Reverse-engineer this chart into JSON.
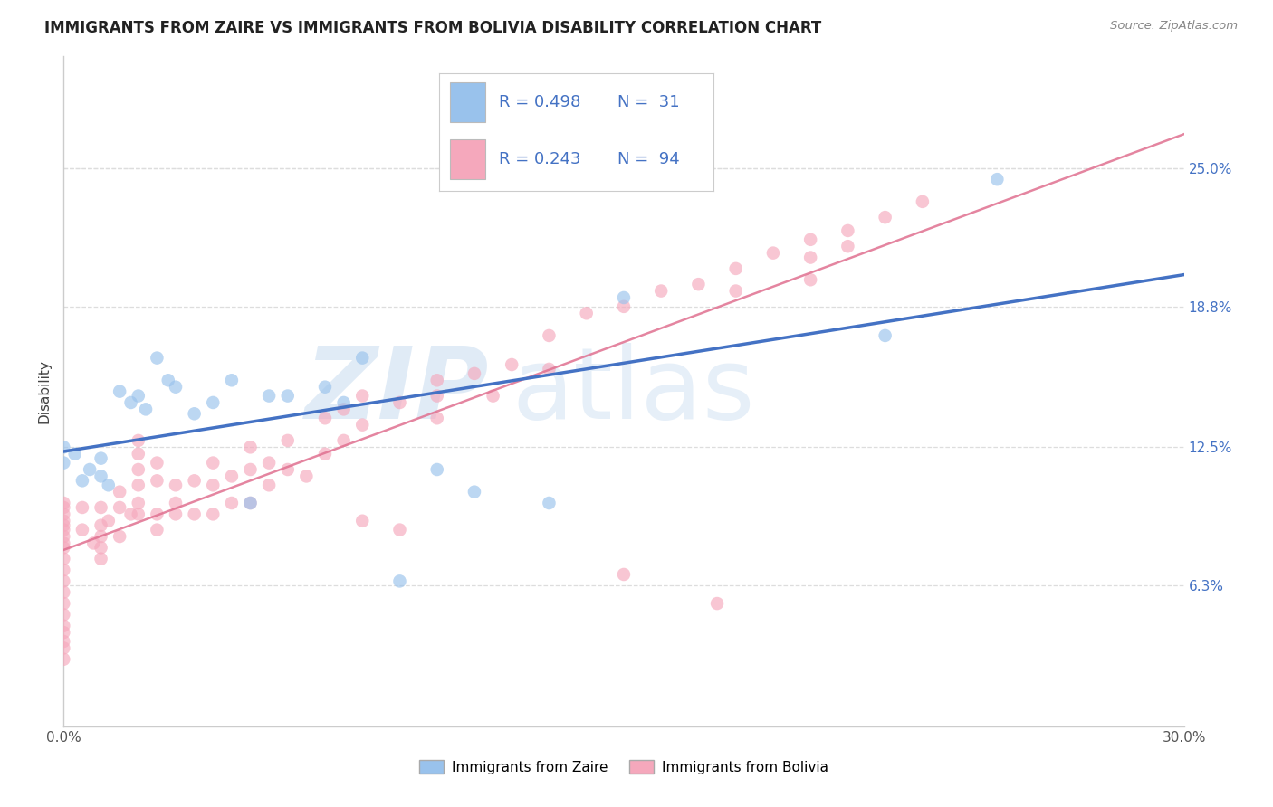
{
  "title": "IMMIGRANTS FROM ZAIRE VS IMMIGRANTS FROM BOLIVIA DISABILITY CORRELATION CHART",
  "source": "Source: ZipAtlas.com",
  "ylabel": "Disability",
  "xlim": [
    0.0,
    0.3
  ],
  "ylim": [
    0.0,
    0.3
  ],
  "xtick_positions": [
    0.0,
    0.05,
    0.1,
    0.15,
    0.2,
    0.25,
    0.3
  ],
  "xticklabels": [
    "0.0%",
    "",
    "",
    "",
    "",
    "",
    "30.0%"
  ],
  "ytick_positions": [
    0.063,
    0.125,
    0.188,
    0.25
  ],
  "yticklabels": [
    "6.3%",
    "12.5%",
    "18.8%",
    "25.0%"
  ],
  "color_zaire": "#99C2EC",
  "color_bolivia": "#F5A8BC",
  "color_line_zaire": "#4472C4",
  "color_line_bolivia": "#E07090",
  "legend_text_color": "#4472C4",
  "background_color": "#FFFFFF",
  "grid_color": "#DDDDDD",
  "watermark_zip_color": "#C8DCF0",
  "watermark_atlas_color": "#C8DCF0",
  "zaire_x": [
    0.0,
    0.0,
    0.003,
    0.005,
    0.007,
    0.01,
    0.01,
    0.012,
    0.015,
    0.018,
    0.02,
    0.022,
    0.025,
    0.028,
    0.03,
    0.035,
    0.04,
    0.045,
    0.05,
    0.055,
    0.06,
    0.07,
    0.075,
    0.08,
    0.09,
    0.1,
    0.11,
    0.13,
    0.15,
    0.22,
    0.25
  ],
  "zaire_y": [
    0.125,
    0.118,
    0.122,
    0.11,
    0.115,
    0.12,
    0.112,
    0.108,
    0.15,
    0.145,
    0.148,
    0.142,
    0.165,
    0.155,
    0.152,
    0.14,
    0.145,
    0.155,
    0.1,
    0.148,
    0.148,
    0.152,
    0.145,
    0.165,
    0.065,
    0.115,
    0.105,
    0.1,
    0.192,
    0.175,
    0.245
  ],
  "bolivia_x": [
    0.0,
    0.0,
    0.0,
    0.0,
    0.0,
    0.0,
    0.0,
    0.0,
    0.0,
    0.0,
    0.0,
    0.0,
    0.0,
    0.0,
    0.0,
    0.0,
    0.0,
    0.0,
    0.0,
    0.0,
    0.005,
    0.005,
    0.008,
    0.01,
    0.01,
    0.01,
    0.01,
    0.01,
    0.012,
    0.015,
    0.015,
    0.015,
    0.018,
    0.02,
    0.02,
    0.02,
    0.02,
    0.02,
    0.02,
    0.025,
    0.025,
    0.025,
    0.025,
    0.03,
    0.03,
    0.03,
    0.035,
    0.035,
    0.04,
    0.04,
    0.04,
    0.045,
    0.045,
    0.05,
    0.05,
    0.05,
    0.055,
    0.055,
    0.06,
    0.06,
    0.065,
    0.07,
    0.07,
    0.075,
    0.075,
    0.08,
    0.08,
    0.09,
    0.1,
    0.1,
    0.1,
    0.11,
    0.115,
    0.12,
    0.13,
    0.13,
    0.14,
    0.15,
    0.16,
    0.17,
    0.18,
    0.18,
    0.19,
    0.2,
    0.2,
    0.2,
    0.21,
    0.21,
    0.22,
    0.23,
    0.08,
    0.09,
    0.15,
    0.175
  ],
  "bolivia_y": [
    0.1,
    0.098,
    0.095,
    0.092,
    0.09,
    0.088,
    0.085,
    0.082,
    0.08,
    0.075,
    0.07,
    0.065,
    0.06,
    0.055,
    0.05,
    0.045,
    0.042,
    0.038,
    0.035,
    0.03,
    0.098,
    0.088,
    0.082,
    0.098,
    0.09,
    0.085,
    0.08,
    0.075,
    0.092,
    0.105,
    0.098,
    0.085,
    0.095,
    0.128,
    0.122,
    0.115,
    0.108,
    0.1,
    0.095,
    0.118,
    0.11,
    0.095,
    0.088,
    0.108,
    0.1,
    0.095,
    0.11,
    0.095,
    0.118,
    0.108,
    0.095,
    0.112,
    0.1,
    0.125,
    0.115,
    0.1,
    0.118,
    0.108,
    0.128,
    0.115,
    0.112,
    0.138,
    0.122,
    0.142,
    0.128,
    0.148,
    0.135,
    0.145,
    0.155,
    0.148,
    0.138,
    0.158,
    0.148,
    0.162,
    0.175,
    0.16,
    0.185,
    0.188,
    0.195,
    0.198,
    0.205,
    0.195,
    0.212,
    0.218,
    0.21,
    0.2,
    0.222,
    0.215,
    0.228,
    0.235,
    0.092,
    0.088,
    0.068,
    0.055
  ]
}
